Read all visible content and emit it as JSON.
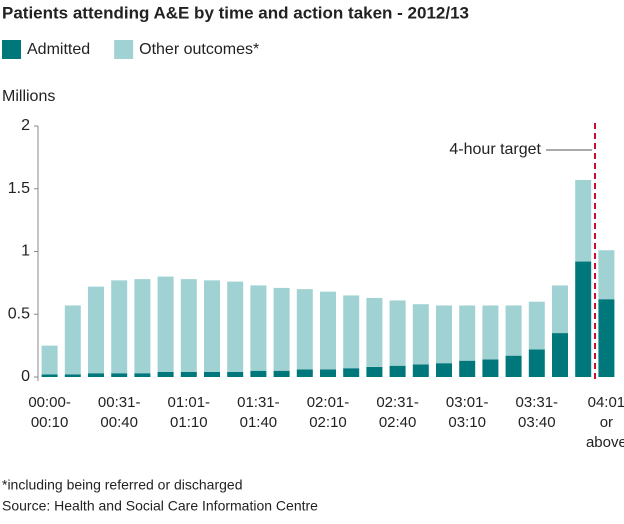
{
  "chart_data": {
    "type": "stacked_bar",
    "title": "Patients attending A&E by time and action taken - 2012/13",
    "y_label": "Millions",
    "annotation": "4-hour target",
    "footnote": "*including being referred or discharged",
    "source": "Source: Health and Social Care Information Centre",
    "categories": [
      "00:00-\n00:10",
      null,
      null,
      "00:31-\n00:40",
      null,
      null,
      "01:01-\n01:10",
      null,
      null,
      "01:31-\n01:40",
      null,
      null,
      "02:01-\n02:10",
      null,
      null,
      "02:31-\n02:40",
      null,
      null,
      "03:01-\n03:10",
      null,
      null,
      "03:31-\n03:40",
      null,
      null,
      "04:01\nor\nabove"
    ],
    "series": [
      {
        "name": "Admitted",
        "color": "#00777a",
        "values": [
          0.02,
          0.02,
          0.03,
          0.03,
          0.03,
          0.04,
          0.04,
          0.04,
          0.04,
          0.05,
          0.05,
          0.06,
          0.06,
          0.07,
          0.08,
          0.09,
          0.1,
          0.11,
          0.13,
          0.14,
          0.17,
          0.22,
          0.35,
          0.92,
          0.62
        ]
      },
      {
        "name": "Other outcomes*",
        "color": "#a1d2d3",
        "values": [
          0.23,
          0.55,
          0.69,
          0.74,
          0.75,
          0.76,
          0.74,
          0.73,
          0.72,
          0.68,
          0.66,
          0.64,
          0.62,
          0.58,
          0.55,
          0.52,
          0.48,
          0.46,
          0.44,
          0.43,
          0.4,
          0.38,
          0.38,
          0.65,
          0.39
        ]
      }
    ],
    "ylim": [
      0,
      2
    ],
    "yticks": [
      0,
      0.5,
      1,
      1.5,
      2
    ],
    "grid": false
  }
}
